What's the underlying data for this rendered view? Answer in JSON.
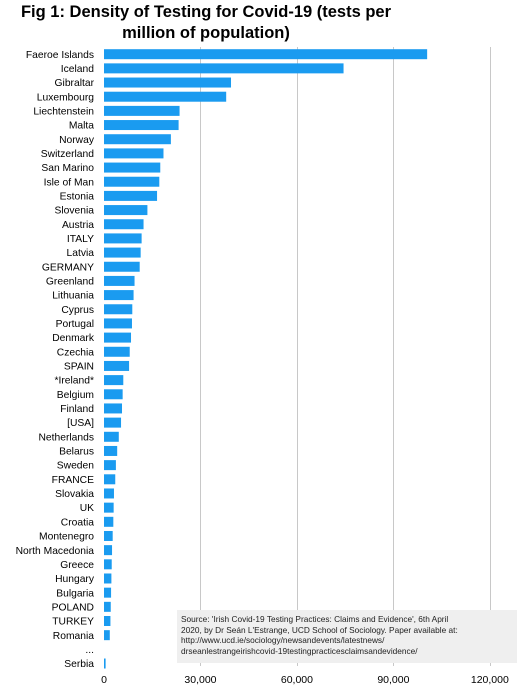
{
  "title_line1": "Fig 1: Density of Testing for Covid-19 (tests per",
  "title_line2": "million of population)",
  "source_lines": [
    "Source: 'Irish Covid-19 Testing Practices: Claims and Evidence', 6th April",
    "2020, by Dr Seán L'Estrange, UCD School of Sociology. Paper available at:",
    "http://www.ucd.ie/sociology/newsandevents/latestnews/",
    "drseanlestrangeirishcovid-19testingpracticesclaimsandevidence/"
  ],
  "colors": {
    "bar": "#1a9bf0",
    "grid": "#c8c8c8",
    "note_background": "#efefef"
  },
  "chart_data": {
    "type": "bar",
    "orientation": "horizontal",
    "title": "Fig 1: Density of Testing for Covid-19 (tests per million of population)",
    "xlabel": "",
    "ylabel": "",
    "xlim": [
      0,
      130000
    ],
    "grid": true,
    "legend": "none",
    "x_ticks": [
      0,
      30000,
      60000,
      90000,
      120000
    ],
    "x_tick_labels": [
      "0",
      "30,000",
      "60,000",
      "90,000",
      "120,000"
    ],
    "categories": [
      "Faeroe Islands",
      "Iceland",
      "Gibraltar",
      "Luxembourg",
      "Liechtenstein",
      "Malta",
      "Norway",
      "Switzerland",
      "San Marino",
      "Isle of Man",
      "Estonia",
      "Slovenia",
      "Austria",
      "ITALY",
      "Latvia",
      "GERMANY",
      "Greenland",
      "Lithuania",
      "Cyprus",
      "Portugal",
      "Denmark",
      "Czechia",
      "SPAIN",
      "*Ireland*",
      "Belgium",
      "Finland",
      "[USA]",
      "Netherlands",
      "Belarus",
      "Sweden",
      "FRANCE",
      "Slovakia",
      "UK",
      "Croatia",
      "Montenegro",
      "North Macedonia",
      "Greece",
      "Hungary",
      "Bulgaria",
      "POLAND",
      "TURKEY",
      "Romania",
      "...",
      "Serbia"
    ],
    "values": [
      100500,
      74500,
      39500,
      38000,
      23500,
      23200,
      20800,
      18500,
      17500,
      17200,
      16500,
      13500,
      12300,
      11700,
      11400,
      11100,
      9500,
      9200,
      8800,
      8700,
      8400,
      8000,
      7800,
      6000,
      5800,
      5600,
      5300,
      4600,
      4100,
      3700,
      3500,
      3100,
      3000,
      2900,
      2700,
      2500,
      2400,
      2300,
      2200,
      2100,
      2000,
      1800,
      null,
      500
    ]
  }
}
